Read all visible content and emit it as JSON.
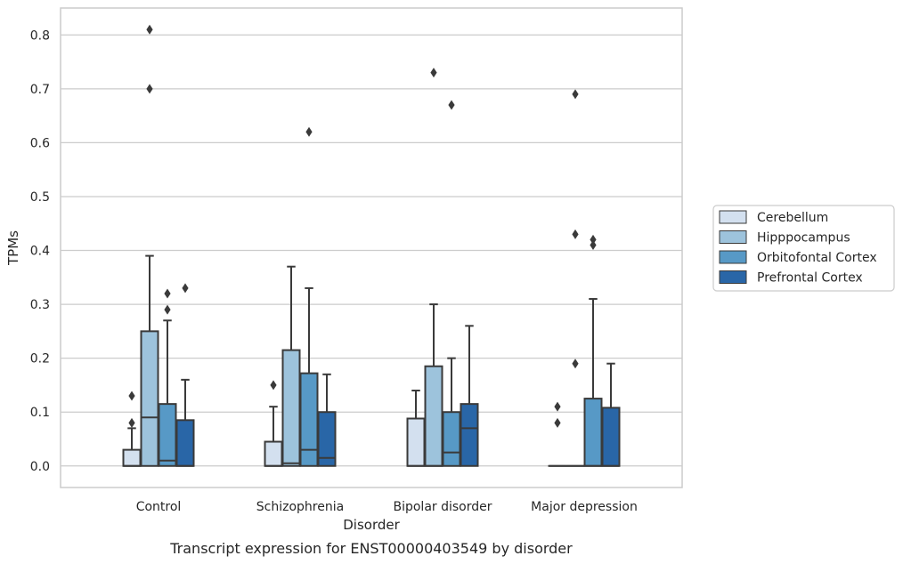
{
  "chart_data": {
    "type": "box",
    "title": "",
    "caption": "Transcript expression for ENST00000403549 by disorder",
    "xlabel": "Disorder",
    "ylabel": "TPMs",
    "ylim": [
      -0.04,
      0.85
    ],
    "yticks": [
      0.0,
      0.1,
      0.2,
      0.3,
      0.4,
      0.5,
      0.6,
      0.7,
      0.8
    ],
    "ytick_labels": [
      "0.0",
      "0.1",
      "0.2",
      "0.3",
      "0.4",
      "0.5",
      "0.6",
      "0.7",
      "0.8"
    ],
    "grid": "horizontal",
    "legend_placement": "right",
    "categories": [
      "Control",
      "Schizophrenia",
      "Bipolar disorder",
      "Major depression"
    ],
    "series": [
      {
        "name": "Cerebellum",
        "color": "#d3e0ef",
        "boxes": [
          {
            "q1": 0.0,
            "median": 0.0,
            "q3": 0.03,
            "whisker_low": 0.0,
            "whisker_high": 0.07,
            "outliers": [
              0.13,
              0.08
            ]
          },
          {
            "q1": 0.0,
            "median": 0.0,
            "q3": 0.045,
            "whisker_low": 0.0,
            "whisker_high": 0.11,
            "outliers": [
              0.15
            ]
          },
          {
            "q1": 0.0,
            "median": 0.0,
            "q3": 0.088,
            "whisker_low": 0.0,
            "whisker_high": 0.14,
            "outliers": []
          },
          {
            "q1": 0.0,
            "median": 0.0,
            "q3": 0.0,
            "whisker_low": 0.0,
            "whisker_high": 0.0,
            "outliers": [
              0.11,
              0.08
            ]
          }
        ]
      },
      {
        "name": "Hipppocampus",
        "color": "#9dc3dc",
        "boxes": [
          {
            "q1": 0.0,
            "median": 0.09,
            "q3": 0.25,
            "whisker_low": 0.0,
            "whisker_high": 0.39,
            "outliers": [
              0.81,
              0.7
            ]
          },
          {
            "q1": 0.0,
            "median": 0.005,
            "q3": 0.215,
            "whisker_low": 0.0,
            "whisker_high": 0.37,
            "outliers": []
          },
          {
            "q1": 0.0,
            "median": 0.0,
            "q3": 0.185,
            "whisker_low": 0.0,
            "whisker_high": 0.3,
            "outliers": [
              0.73
            ]
          },
          {
            "q1": 0.0,
            "median": 0.0,
            "q3": 0.0,
            "whisker_low": 0.0,
            "whisker_high": 0.0,
            "outliers": [
              0.69,
              0.43,
              0.19
            ]
          }
        ]
      },
      {
        "name": "Orbitofontal Cortex",
        "color": "#5799c6",
        "boxes": [
          {
            "q1": 0.0,
            "median": 0.01,
            "q3": 0.115,
            "whisker_low": 0.0,
            "whisker_high": 0.27,
            "outliers": [
              0.32,
              0.29
            ]
          },
          {
            "q1": 0.0,
            "median": 0.03,
            "q3": 0.172,
            "whisker_low": 0.0,
            "whisker_high": 0.33,
            "outliers": [
              0.62
            ]
          },
          {
            "q1": 0.0,
            "median": 0.025,
            "q3": 0.1,
            "whisker_low": 0.0,
            "whisker_high": 0.2,
            "outliers": [
              0.67
            ]
          },
          {
            "q1": 0.0,
            "median": 0.0,
            "q3": 0.125,
            "whisker_low": 0.0,
            "whisker_high": 0.31,
            "outliers": [
              0.42,
              0.41
            ]
          }
        ]
      },
      {
        "name": "Prefrontal Cortex",
        "color": "#2966a7",
        "boxes": [
          {
            "q1": 0.0,
            "median": 0.0,
            "q3": 0.085,
            "whisker_low": 0.0,
            "whisker_high": 0.16,
            "outliers": [
              0.33
            ]
          },
          {
            "q1": 0.0,
            "median": 0.015,
            "q3": 0.1,
            "whisker_low": 0.0,
            "whisker_high": 0.17,
            "outliers": []
          },
          {
            "q1": 0.0,
            "median": 0.07,
            "q3": 0.115,
            "whisker_low": 0.0,
            "whisker_high": 0.26,
            "outliers": []
          },
          {
            "q1": 0.0,
            "median": 0.0,
            "q3": 0.108,
            "whisker_low": 0.0,
            "whisker_high": 0.19,
            "outliers": []
          }
        ]
      }
    ],
    "colors": {
      "edge": "#3a3a3a",
      "grid": "#cccccc",
      "frame": "#cccccc",
      "text": "#262626"
    }
  }
}
